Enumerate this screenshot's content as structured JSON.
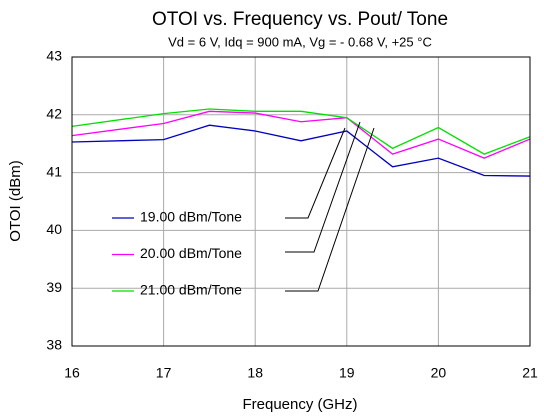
{
  "chart_data": {
    "type": "line",
    "title": "OTOI vs. Frequency vs. Pout/ Tone",
    "subtitle": "Vd = 6 V, Idq = 900 mA, Vg = - 0.68 V, +25 °C",
    "x_label": "Frequency (GHz)",
    "y_label": "OTOI (dBm)",
    "x": [
      16,
      17,
      17.5,
      18,
      18.5,
      19,
      19.5,
      20,
      20.5,
      21
    ],
    "series": [
      {
        "name": "19.00 dBm/Tone",
        "color": "#0000c0",
        "values": [
          41.53,
          41.57,
          41.82,
          41.72,
          41.55,
          41.72,
          41.1,
          41.25,
          40.95,
          40.94
        ]
      },
      {
        "name": "20.00 dBm/Tone",
        "color": "#ff00ff",
        "values": [
          41.64,
          41.85,
          42.06,
          42.03,
          41.88,
          41.95,
          41.32,
          41.58,
          41.25,
          41.58
        ]
      },
      {
        "name": "21.00 dBm/Tone",
        "color": "#00e000",
        "values": [
          41.8,
          42.02,
          42.1,
          42.06,
          42.06,
          41.95,
          41.42,
          41.78,
          41.32,
          41.62
        ]
      }
    ],
    "xlim": [
      16,
      21
    ],
    "xticks": [
      16,
      17,
      18,
      19,
      20,
      21
    ],
    "ylim": [
      38,
      43
    ],
    "yticks": [
      38,
      39,
      40,
      41,
      42,
      43
    ],
    "grid": true
  }
}
